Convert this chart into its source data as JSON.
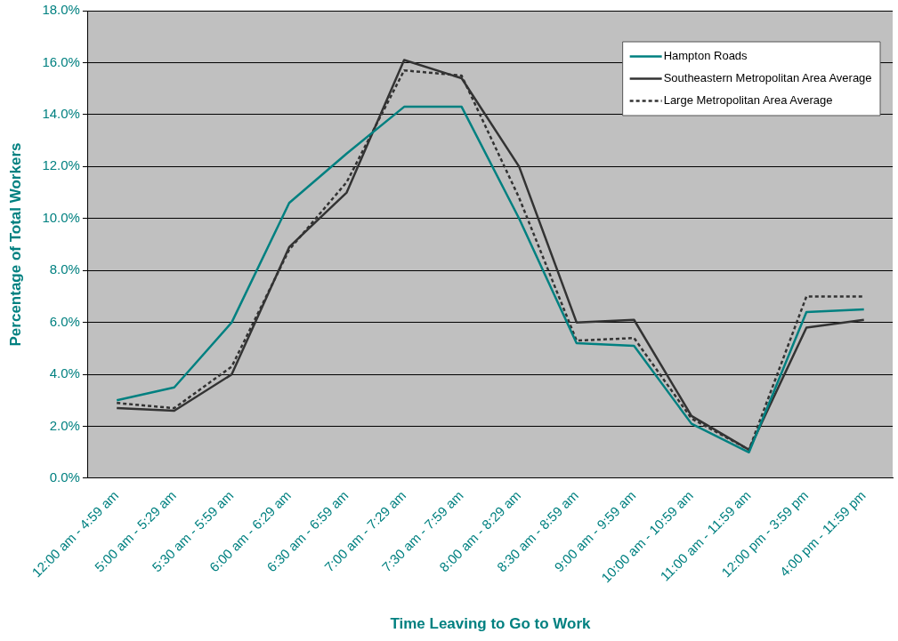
{
  "chart_data": {
    "type": "line",
    "xlabel": "Time Leaving to Go to Work",
    "ylabel": "Percentage of Total Workers",
    "categories": [
      "12:00 am - 4:59 am",
      "5:00 am - 5:29 am",
      "5:30 am - 5:59 am",
      "6:00 am - 6:29 am",
      "6:30 am - 6:59 am",
      "7:00 am - 7:29 am",
      "7:30 am - 7:59 am",
      "8:00 am - 8:29 am",
      "8:30 am - 8:59 am",
      "9:00 am - 9:59 am",
      "10:00 am - 10:59 am",
      "11:00 am - 11:59 am",
      "12:00 pm - 3:59 pm",
      "4:00 pm - 11:59 pm"
    ],
    "series": [
      {
        "name": "Hampton Roads",
        "color": "#008080",
        "line_style": "solid",
        "values": [
          3.0,
          3.5,
          6.0,
          10.6,
          12.5,
          14.3,
          14.3,
          10.0,
          5.2,
          5.1,
          2.1,
          1.0,
          6.4,
          6.5
        ]
      },
      {
        "name": "Southeastern Metropolitan Area Average",
        "color": "#333333",
        "line_style": "solid",
        "values": [
          2.7,
          2.6,
          4.0,
          8.9,
          11.0,
          16.1,
          15.4,
          12.0,
          6.0,
          6.1,
          2.4,
          1.1,
          5.8,
          6.1
        ]
      },
      {
        "name": "Large Metropolitan Area Average",
        "color": "#333333",
        "line_style": "dashed",
        "values": [
          2.9,
          2.7,
          4.3,
          8.8,
          11.4,
          15.7,
          15.5,
          10.8,
          5.3,
          5.4,
          2.3,
          1.1,
          7.0,
          7.0
        ]
      }
    ],
    "ylim": [
      0,
      18
    ],
    "yticks": [
      {
        "value": 0,
        "label": "0.0%"
      },
      {
        "value": 2,
        "label": "2.0%"
      },
      {
        "value": 4,
        "label": "4.0%"
      },
      {
        "value": 6,
        "label": "6.0%"
      },
      {
        "value": 8,
        "label": "8.0%"
      },
      {
        "value": 10,
        "label": "10.0%"
      },
      {
        "value": 12,
        "label": "12.0%"
      },
      {
        "value": 14,
        "label": "14.0%"
      },
      {
        "value": 16,
        "label": "16.0%"
      },
      {
        "value": 18,
        "label": "18.0%"
      }
    ],
    "grid": "y",
    "legend": "top right",
    "marker": "none"
  }
}
